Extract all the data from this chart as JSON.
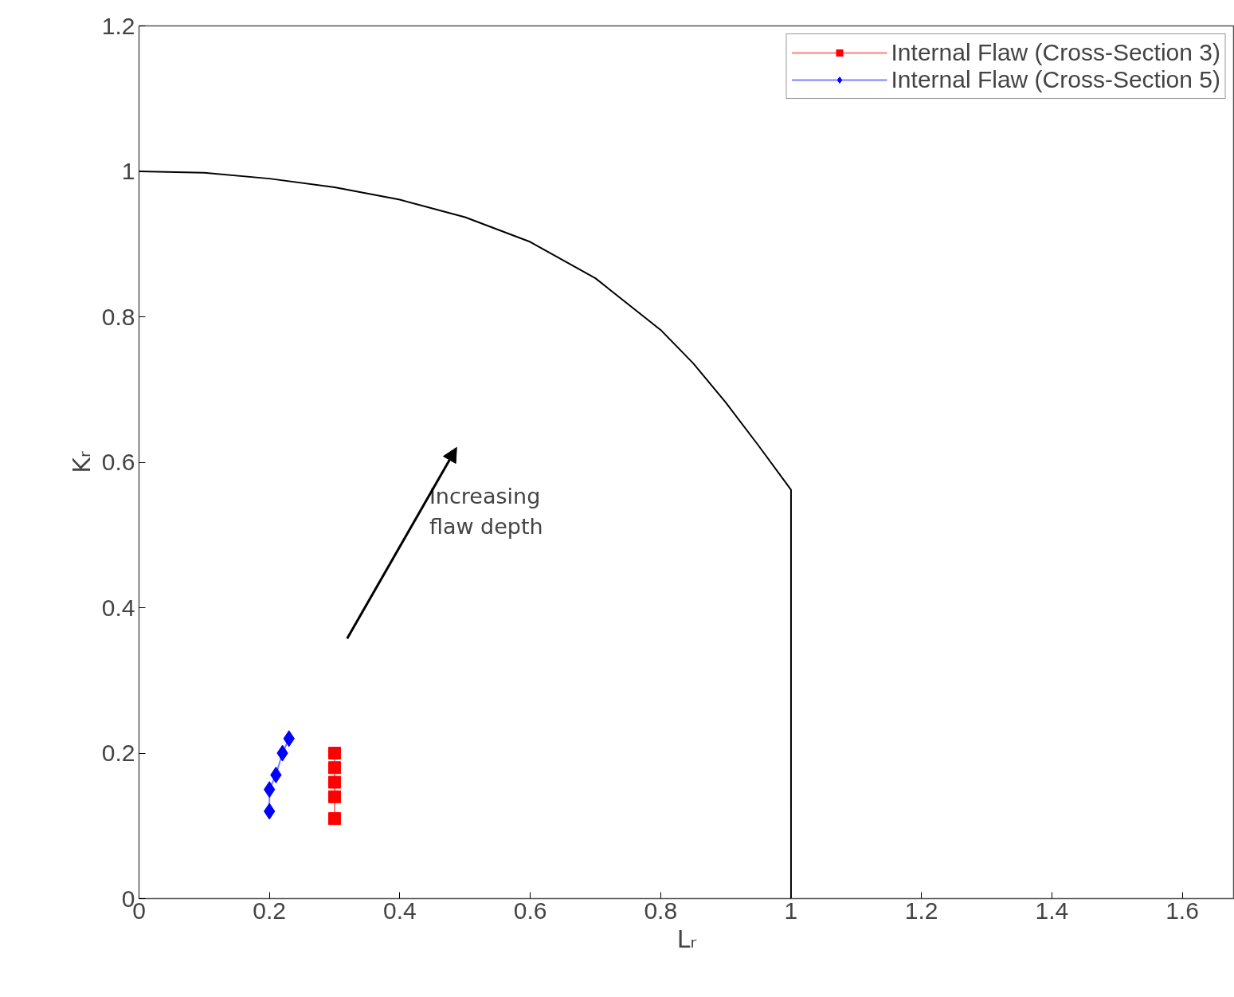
{
  "chart_data": {
    "type": "line",
    "xlabel": "Lᵣ",
    "ylabel": "Kᵣ",
    "xlim": [
      0,
      1.68
    ],
    "ylim": [
      0,
      1.2
    ],
    "xticks": [
      0,
      0.2,
      0.4,
      0.6,
      0.8,
      1,
      1.2,
      1.4,
      1.6
    ],
    "yticks": [
      0,
      0.2,
      0.4,
      0.6,
      0.8,
      1,
      1.2
    ],
    "grid": false,
    "legend": "top right",
    "annotations": [
      "Increasing\nflaw depth"
    ],
    "series": [
      {
        "color": "#000000",
        "marker": "none",
        "x": [
          0,
          0.1,
          0.2,
          0.3,
          0.4,
          0.5,
          0.6,
          0.7,
          0.8,
          0.85,
          0.9,
          0.95,
          1.0,
          1.0
        ],
        "values": [
          1.0,
          0.998,
          0.99,
          0.978,
          0.961,
          0.937,
          0.903,
          0.853,
          0.782,
          0.736,
          0.682,
          0.623,
          0.562,
          0
        ]
      },
      {
        "name": "Internal Flaw (Cross-Section 3)",
        "color": "#ff0000",
        "marker": "square",
        "x": [
          0.3,
          0.3,
          0.3,
          0.3,
          0.3
        ],
        "values": [
          0.11,
          0.14,
          0.16,
          0.18,
          0.2
        ]
      },
      {
        "name": "Internal Flaw (Cross-Section 5)",
        "color": "#0000ff",
        "marker": "diamond",
        "x": [
          0.2,
          0.2,
          0.21,
          0.22,
          0.23
        ],
        "values": [
          0.12,
          0.15,
          0.17,
          0.2,
          0.22
        ]
      }
    ]
  }
}
